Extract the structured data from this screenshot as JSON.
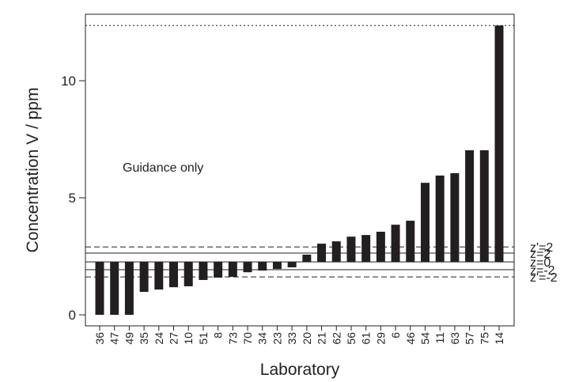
{
  "chart_data": {
    "type": "bar",
    "x_label": "Laboratory",
    "y_label": "Concentration V / ppm",
    "annotation": "Guidance only",
    "categories": [
      "36",
      "47",
      "49",
      "35",
      "24",
      "27",
      "10",
      "51",
      "8",
      "73",
      "70",
      "34",
      "23",
      "33",
      "20",
      "21",
      "62",
      "56",
      "61",
      "29",
      "6",
      "46",
      "54",
      "11",
      "63",
      "57",
      "75",
      "14"
    ],
    "values": [
      0,
      0,
      0,
      0.98,
      1.08,
      1.18,
      1.22,
      1.49,
      1.59,
      1.62,
      1.82,
      1.89,
      1.96,
      2.03,
      2.57,
      3.04,
      3.14,
      3.34,
      3.41,
      3.55,
      3.85,
      4.02,
      5.64,
      5.95,
      6.05,
      7.03,
      7.03,
      12.36
    ],
    "bar_base": 2.26,
    "color": "#231f20",
    "ylim": [
      -0.47,
      12.84
    ],
    "yticks": [
      0,
      5,
      10
    ],
    "reference_lines": [
      {
        "value": 12.36,
        "style": "dotted"
      },
      {
        "value": 2.9,
        "label": "z'=2",
        "style": "dashed"
      },
      {
        "value": 2.64,
        "label": "z=2",
        "style": "solid"
      },
      {
        "value": 2.26,
        "label": "z=0",
        "style": "solid"
      },
      {
        "value": 1.93,
        "label": "z=-2",
        "style": "solid"
      },
      {
        "value": 1.62,
        "label": "z'=-2",
        "style": "dashed"
      }
    ]
  }
}
